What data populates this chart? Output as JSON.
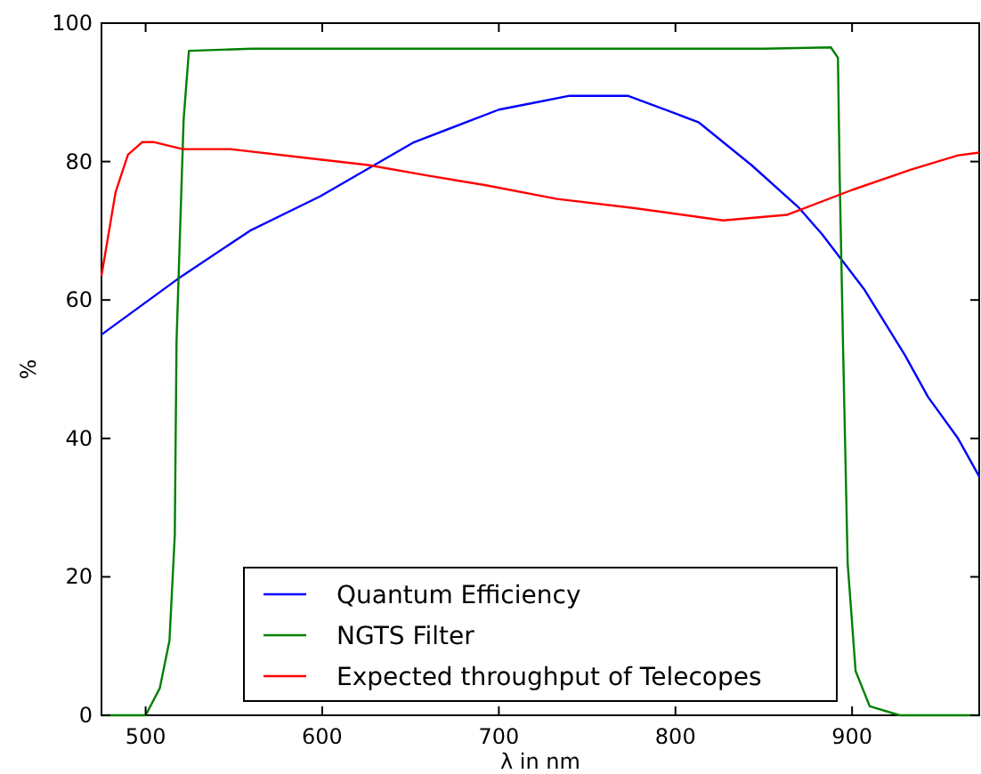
{
  "chart_data": {
    "type": "line",
    "xlabel": "λ in nm",
    "ylabel": "%",
    "xlim": [
      475,
      972
    ],
    "ylim": [
      0,
      100
    ],
    "xticks": [
      500,
      600,
      700,
      800,
      900
    ],
    "yticks": [
      0,
      20,
      40,
      60,
      80,
      100
    ],
    "grid": false,
    "legend": "bottom",
    "marker": "none",
    "line_style": "solid",
    "series": [
      {
        "name": "Quantum Efficiency",
        "color": "#0000ff",
        "x": [
          475,
          518,
          559,
          599,
          652,
          700,
          720,
          740,
          773,
          813,
          843,
          870,
          883,
          907,
          930,
          943,
          960,
          972
        ],
        "values": [
          55,
          63,
          70,
          75,
          82.8,
          87.5,
          88.5,
          89.5,
          89.5,
          85.7,
          79.5,
          73.3,
          69.5,
          61.5,
          52,
          46,
          40,
          34.5
        ]
      },
      {
        "name": "NGTS Filter",
        "color": "#008000",
        "x": [
          475,
          500,
          508,
          513.5,
          516.5,
          517.5,
          521.5,
          524.5,
          560,
          600,
          650,
          700,
          750,
          800,
          850,
          888,
          892,
          893,
          895,
          897.5,
          902,
          910,
          927,
          972
        ],
        "values": [
          0,
          0,
          3.9,
          10.8,
          26,
          54,
          86,
          96,
          96.3,
          96.3,
          96.3,
          96.3,
          96.3,
          96.3,
          96.3,
          96.5,
          95,
          77.7,
          52,
          22,
          6.4,
          1.3,
          0,
          0
        ]
      },
      {
        "name": "Expected throughput of Telecopes",
        "color": "#ff0000",
        "x": [
          475,
          483,
          490,
          498,
          505,
          521,
          548,
          592,
          626,
          659,
          692,
          733,
          776,
          827,
          863,
          900,
          933,
          960,
          972
        ],
        "values": [
          63.5,
          75.6,
          81,
          82.8,
          82.8,
          81.8,
          81.8,
          80.5,
          79.5,
          78,
          76.6,
          74.6,
          73.3,
          71.5,
          72.3,
          75.9,
          78.8,
          80.9,
          81.3
        ]
      }
    ]
  }
}
